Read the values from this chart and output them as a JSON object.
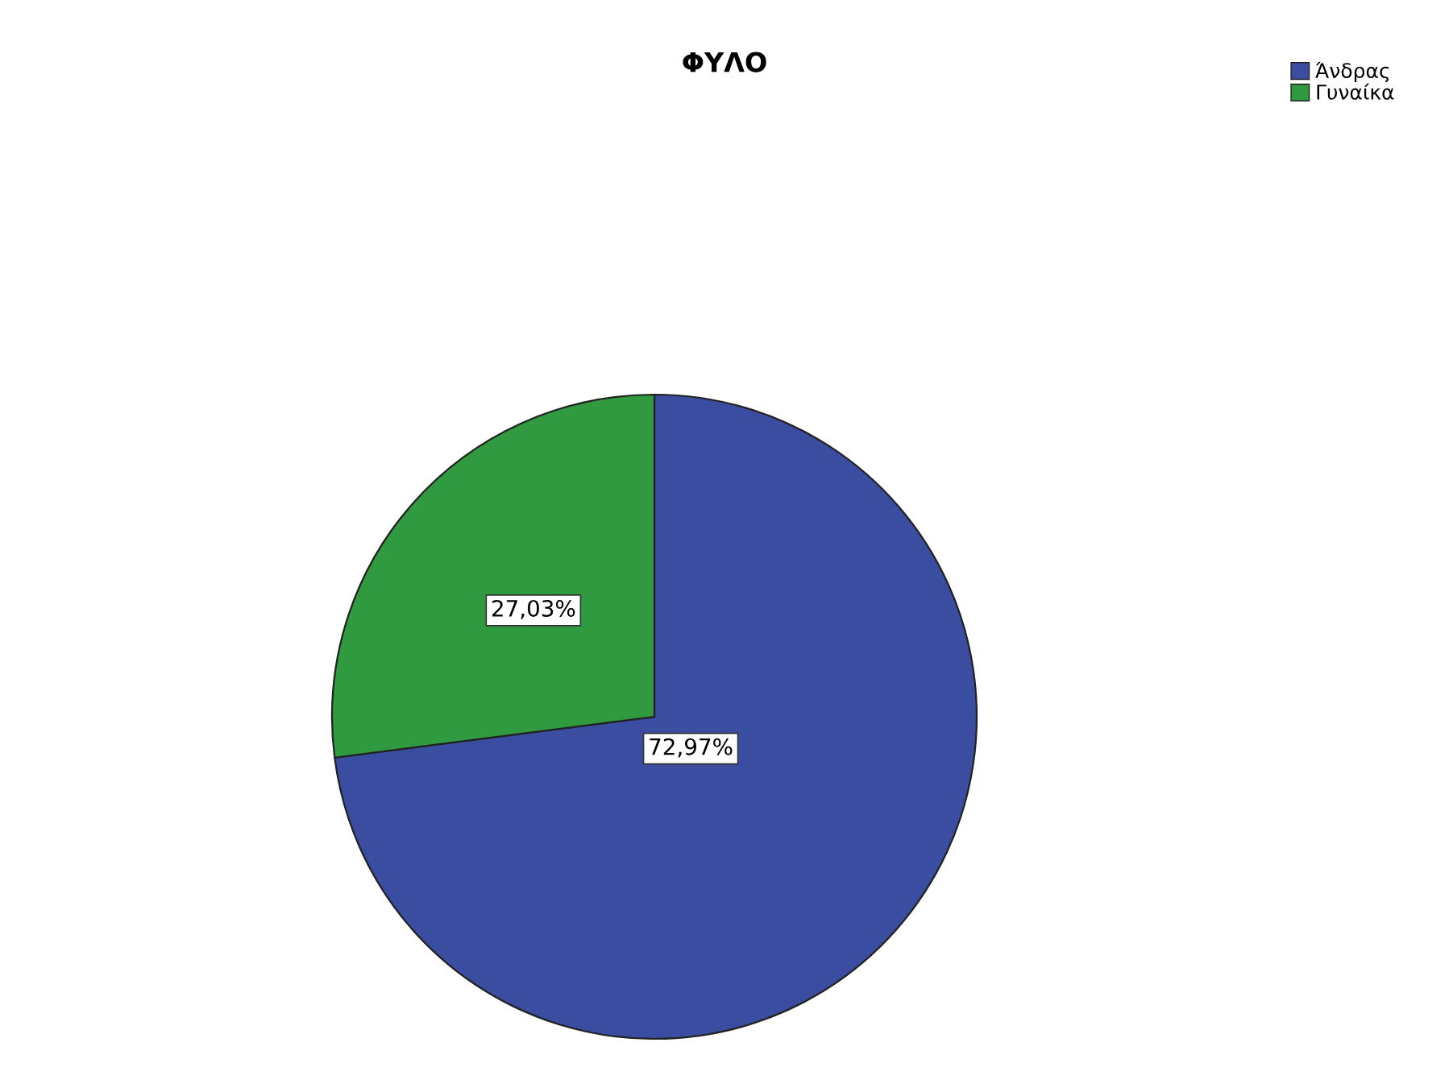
{
  "chart_data": {
    "type": "pie",
    "title": "ΦΥΛΟ",
    "categories": [
      "Άνδρας",
      "Γυναίκα"
    ],
    "values": [
      72.97,
      27.03
    ],
    "colors": [
      "#3a4da0",
      "#2f9a3f"
    ],
    "value_labels": [
      "72,97%",
      "27,03%"
    ],
    "legend": "top right"
  }
}
